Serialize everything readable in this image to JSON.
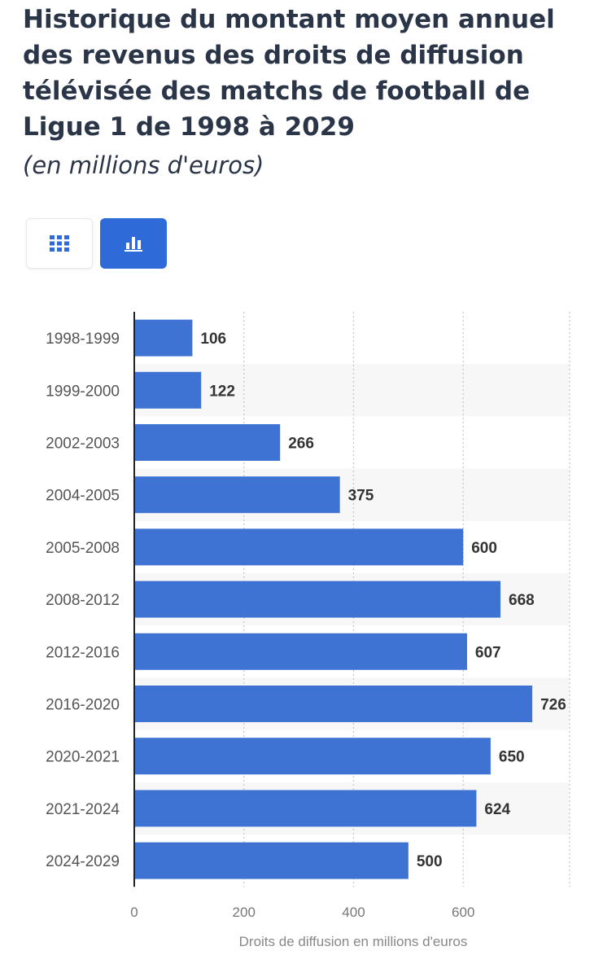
{
  "title": "Historique du montant moyen annuel des revenus des droits de diffusion télévisée des matchs de football de Ligue 1 de 1998 à 2029",
  "subtitle": "(en millions d'euros)",
  "toggles": [
    {
      "icon": "table-grid-icon",
      "active": false
    },
    {
      "icon": "bar-chart-icon",
      "active": true
    }
  ],
  "colors": {
    "bar": "#3e73d3",
    "accent": "#2f6ad9",
    "title": "#2b3548"
  },
  "chart_data": {
    "type": "bar",
    "orientation": "horizontal",
    "categories": [
      "1998-1999",
      "1999-2000",
      "2002-2003",
      "2004-2005",
      "2005-2008",
      "2008-2012",
      "2012-2016",
      "2016-2020",
      "2020-2021",
      "2021-2024",
      "2024-2029"
    ],
    "values": [
      106,
      122,
      266,
      375,
      600,
      668,
      607,
      726,
      650,
      624,
      500
    ],
    "xlabel": "Droits de diffusion en millions d'euros",
    "ylabel": "",
    "xlim": [
      0,
      800
    ],
    "xticks": [
      0,
      200,
      400,
      600
    ],
    "grid": true,
    "data_labels": true
  }
}
